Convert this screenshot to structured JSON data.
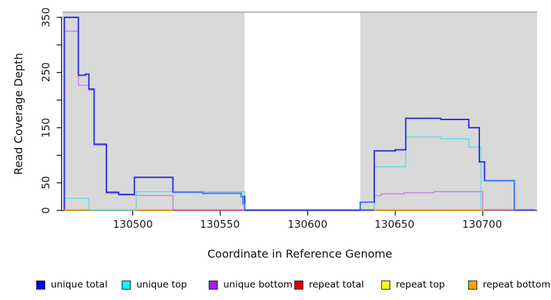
{
  "chart_data": {
    "type": "line",
    "subtype": "step-coverage-plot",
    "title": "",
    "xlabel": "Coordinate in Reference Genome",
    "ylabel": "Read Coverage Depth",
    "xlim": [
      130460,
      130731
    ],
    "ylim": [
      0,
      360
    ],
    "x_ticks": [
      130500,
      130550,
      130600,
      130650,
      130700
    ],
    "x_tick_labels": [
      "130500",
      "130550",
      "130600",
      "130650",
      "130700"
    ],
    "y_ticks_all": [
      0,
      50,
      100,
      150,
      200,
      250,
      300,
      350
    ],
    "y_tick_labels": [
      "0",
      "50",
      "150",
      "250",
      "350"
    ],
    "shade_color": "#d9d9d9",
    "shaded_regions": [
      [
        130460,
        130564
      ],
      [
        130630,
        130731
      ]
    ],
    "legend": [
      {
        "label": "unique total",
        "color": "#0000ff"
      },
      {
        "label": "unique top",
        "color": "#00ffff"
      },
      {
        "label": "unique bottom",
        "color": "#a020f0"
      },
      {
        "label": "repeat total",
        "color": "#e00000"
      },
      {
        "label": "repeat top",
        "color": "#ffff00"
      },
      {
        "label": "repeat bottom",
        "color": "#ffa500"
      }
    ],
    "series": [
      {
        "key": "unique-bottom",
        "line_color": "#be7fe0",
        "width": 1.4,
        "from_zero": true,
        "steps": [
          [
            130461,
            325
          ],
          [
            130469,
            227
          ],
          [
            130475,
            218
          ],
          [
            130478,
            118
          ],
          [
            130485,
            31
          ],
          [
            130492,
            28
          ],
          [
            130501,
            27
          ],
          [
            130523,
            0
          ],
          [
            130638,
            27
          ],
          [
            130642,
            30
          ],
          [
            130655,
            32
          ],
          [
            130672,
            34
          ],
          [
            130700,
            0
          ],
          [
            130730,
            0
          ]
        ]
      },
      {
        "key": "unique-top",
        "line_color": "#55e0e6",
        "width": 1.4,
        "from_zero": true,
        "steps": [
          [
            130461,
            22
          ],
          [
            130475,
            0
          ],
          [
            130502,
            34
          ],
          [
            130564,
            0
          ],
          [
            130638,
            79
          ],
          [
            130656,
            133
          ],
          [
            130676,
            130
          ],
          [
            130692,
            115
          ],
          [
            130699,
            0
          ],
          [
            130730,
            0
          ]
        ]
      },
      {
        "key": "unique-total",
        "line_color": "#2e2edc",
        "width": 2,
        "from_zero": true,
        "steps": [
          [
            130461,
            350
          ],
          [
            130469,
            245
          ],
          [
            130473,
            247
          ],
          [
            130475,
            220
          ],
          [
            130478,
            120
          ],
          [
            130485,
            33
          ],
          [
            130492,
            29
          ],
          [
            130501,
            60
          ],
          [
            130523,
            33
          ],
          [
            130540,
            31
          ],
          [
            130562,
            25
          ],
          [
            130564,
            0
          ],
          [
            130630,
            15
          ],
          [
            130638,
            108
          ],
          [
            130650,
            110
          ],
          [
            130656,
            167
          ],
          [
            130676,
            165
          ],
          [
            130692,
            150
          ],
          [
            130698,
            88
          ],
          [
            130701,
            54
          ],
          [
            130718,
            0
          ],
          [
            130730,
            0
          ]
        ]
      },
      {
        "key": "unique-total-light-a",
        "line_color": "#4285f4",
        "width": 2,
        "from_zero": false,
        "steps": [
          [
            130523,
            33
          ],
          [
            130540,
            31
          ],
          [
            130562,
            25
          ],
          [
            130563,
            12
          ],
          [
            130564,
            0
          ]
        ]
      },
      {
        "key": "unique-total-light-b",
        "line_color": "#4285f4",
        "width": 2,
        "from_zero": true,
        "steps": [
          [
            130630,
            15
          ],
          [
            130638,
            15
          ]
        ]
      },
      {
        "key": "unique-total-light-c",
        "line_color": "#4285f4",
        "width": 2,
        "from_zero": false,
        "steps": [
          [
            130701,
            54
          ],
          [
            130718,
            0
          ],
          [
            130730,
            0
          ]
        ]
      },
      {
        "key": "repeat-total",
        "line_color": "#e8638c",
        "width": 1.4,
        "from_zero": false,
        "steps": []
      },
      {
        "key": "repeat-top",
        "line_color": "#ffff00",
        "width": 1.4,
        "from_zero": false,
        "steps": []
      },
      {
        "key": "repeat-bottom",
        "line_color": "#ffa500",
        "width": 1.4,
        "from_zero": false,
        "steps": []
      }
    ],
    "baseline_segments": [
      {
        "color": "#ffa500",
        "from": 130461,
        "to": 130475
      },
      {
        "color": "#7fd39b",
        "from": 130475,
        "to": 130502
      },
      {
        "color": "#ffa500",
        "from": 130502,
        "to": 130523
      },
      {
        "color": "#e8638c",
        "from": 130523,
        "to": 130564
      },
      {
        "color": "#6158dc",
        "from": 130564,
        "to": 130638
      },
      {
        "color": "#ffa500",
        "from": 130638,
        "to": 130701
      },
      {
        "color": "#e8638c",
        "from": 130701,
        "to": 130718
      },
      {
        "color": "#6158dc",
        "from": 130718,
        "to": 130730
      }
    ]
  }
}
